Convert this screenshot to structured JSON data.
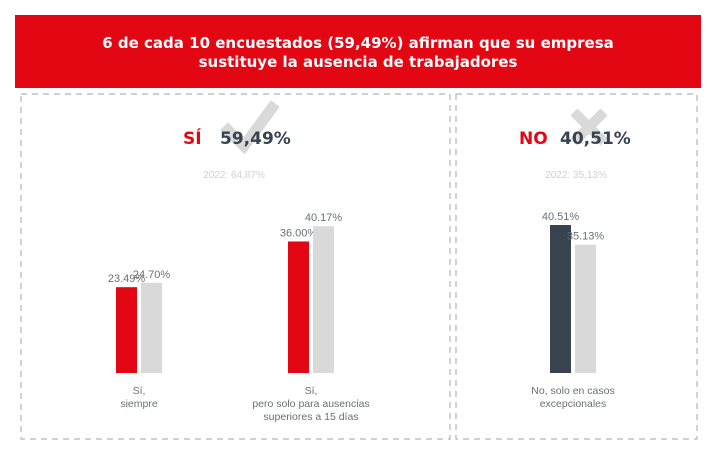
{
  "title_lines": [
    "6 de cada 10 encuestados (59,49%) afirman que su empresa",
    "sustituye la ausencia de trabajadores"
  ],
  "panels": {
    "yes": {
      "label": "SÍ",
      "value": "59,49%",
      "previous": "2022: 64,87%",
      "icon": "checkmark-icon"
    },
    "no": {
      "label": "NO",
      "value": "40,51%",
      "previous": "2022: 35,13%",
      "icon": "cross-icon"
    }
  },
  "colors": {
    "banner": "#e30613",
    "yes_current": "#e30613",
    "no_current": "#37434f",
    "previous": "#d9d9d9",
    "value_text": "#37434f"
  },
  "chart_data": {
    "type": "bar",
    "categories": [
      {
        "lines": [
          "Sí,",
          "siempre"
        ]
      },
      {
        "lines": [
          "Sí,",
          "pero solo para ausencias",
          "superiores a 15 días"
        ]
      },
      {
        "lines": [
          "No, solo en casos",
          "excepcionales"
        ]
      }
    ],
    "series": [
      {
        "values": [
          23.49,
          36.0,
          40.51
        ],
        "labels": [
          "23.49%",
          "36.00%",
          "40.51%"
        ]
      },
      {
        "values": [
          24.7,
          40.17,
          35.13
        ],
        "labels": [
          "24.70%",
          "40.17%",
          "35.13%"
        ]
      }
    ],
    "ylim": [
      0,
      45
    ]
  }
}
